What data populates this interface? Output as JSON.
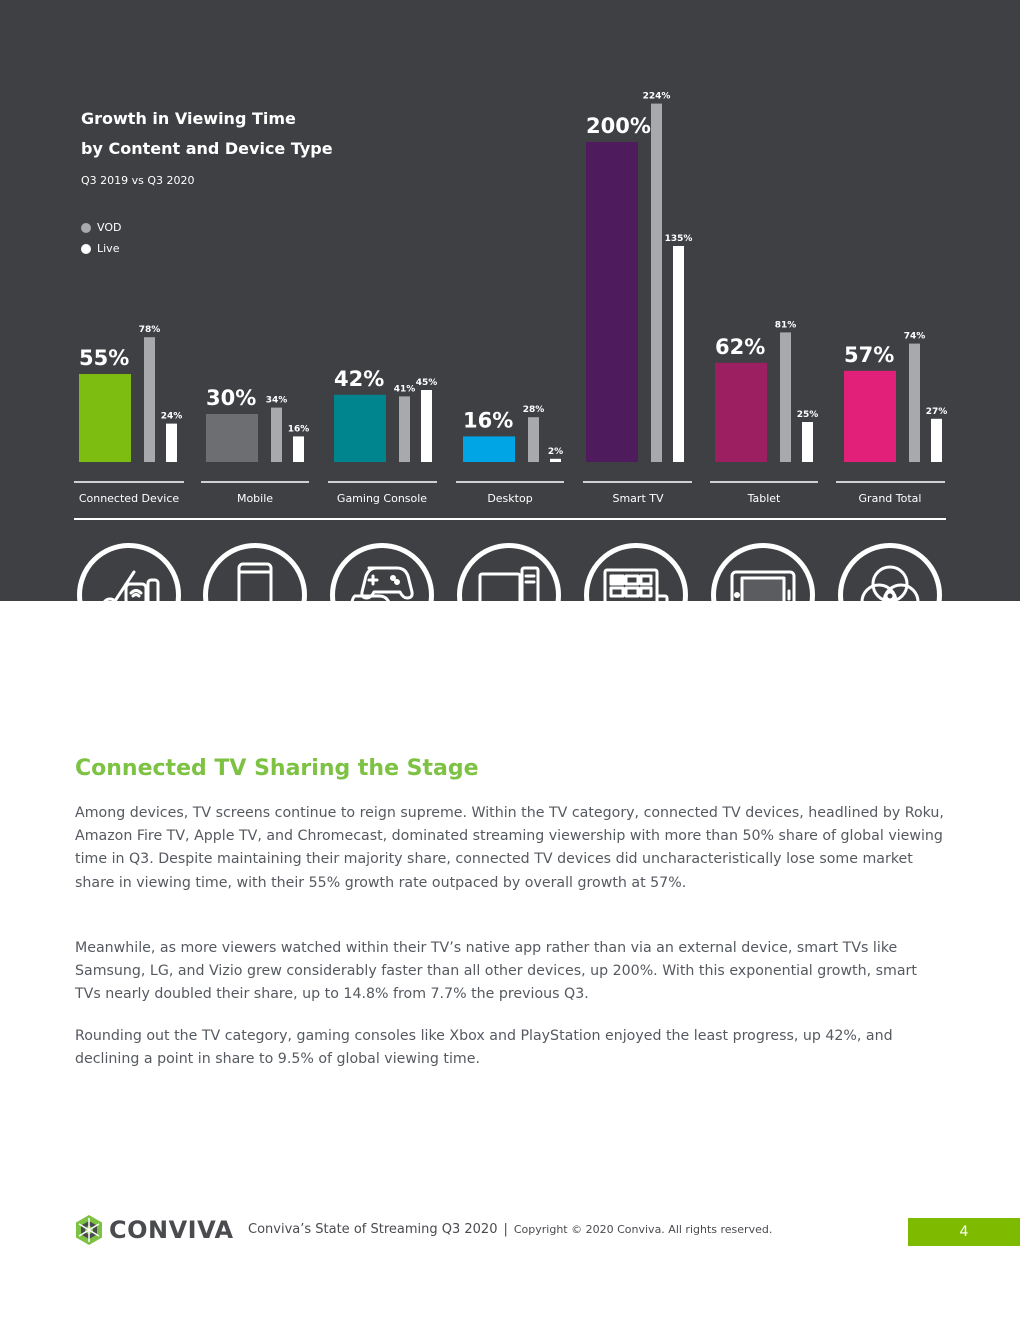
{
  "chart_data": {
    "type": "bar",
    "title": "Growth in Viewing Time",
    "title_line2": "by Content and Device Type",
    "subtitle": "Q3 2019 vs Q3 2020",
    "legend_position": "top-left",
    "categories": [
      "Connected Device",
      "Mobile",
      "Gaming Console",
      "Desktop",
      "Smart TV",
      "Tablet",
      "Grand Total"
    ],
    "series": [
      {
        "values": [
          55,
          30,
          42,
          16,
          200,
          62,
          57
        ],
        "labels": [
          "55%",
          "30%",
          "42%",
          "16%",
          "200%",
          "62%",
          "57%"
        ],
        "colors": [
          "#7dbc10",
          "#6d6e71",
          "#00848d",
          "#00a5e5",
          "#4e1b5c",
          "#9c1f61",
          "#e2207a"
        ]
      },
      {
        "name": "VOD",
        "color": "#a7a9ac",
        "values": [
          78,
          34,
          41,
          28,
          224,
          81,
          74
        ],
        "labels": [
          "78%",
          "34%",
          "41%",
          "28%",
          "224%",
          "81%",
          "74%"
        ]
      },
      {
        "name": "Live",
        "color": "#ffffff",
        "values": [
          24,
          16,
          45,
          2,
          135,
          25,
          27
        ],
        "labels": [
          "24%",
          "16%",
          "45%",
          "2%",
          "135%",
          "25%",
          "27%"
        ]
      }
    ]
  },
  "device_icons": [
    {
      "name": "connected-device-icon",
      "color": "#7dbc10"
    },
    {
      "name": "mobile-icon",
      "color": "#58595b"
    },
    {
      "name": "gaming-console-icon",
      "color": "#00848d"
    },
    {
      "name": "desktop-icon",
      "color": "#00a5e5"
    },
    {
      "name": "smart-tv-icon",
      "color": "#4e1b5c"
    },
    {
      "name": "tablet-icon",
      "color": "#9c1f61"
    },
    {
      "name": "grand-total-icon",
      "color": "#e2207a"
    }
  ],
  "section": {
    "heading": "Connected TV Sharing the Stage",
    "paragraphs": [
      "Among devices, TV screens continue to reign supreme. Within the TV category, connected TV devices, headlined by Roku, Amazon Fire TV, Apple TV, and Chromecast, dominated streaming viewership with more than 50% share of global viewing time in Q3. Despite  maintaining their majority share, connected TV devices did uncharacteristically lose some market share in viewing time, with their 55% growth rate outpaced by overall growth at 57%.",
      "Meanwhile, as more viewers watched within their TV’s native app rather than via an external device, smart TVs like Samsung, LG, and Vizio grew considerably faster than all other devices, up 200%. With this exponential growth, smart TVs nearly doubled their share, up to 14.8% from 7.7% the previous Q3.",
      "Rounding out the TV category, gaming consoles like Xbox and PlayStation enjoyed the least progress, up 42%, and declining a point in share to 9.5% of global viewing time."
    ]
  },
  "footer": {
    "logo_text": "CONVIVA",
    "report": "Conviva’s State of Streaming Q3 2020",
    "separator": "|",
    "copyright": "Copyright © 2020 Conviva. All rights reserved.",
    "page_number": "4"
  },
  "colors": {
    "dark_background": "#3f4044",
    "accent_green": "#7dc242",
    "body_text": "#555a60"
  }
}
